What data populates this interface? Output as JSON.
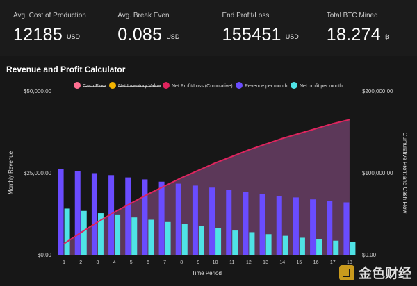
{
  "stats": [
    {
      "label": "Avg. Cost of Production",
      "value": "12185",
      "unit": "USD"
    },
    {
      "label": "Avg. Break Even",
      "value": "0.085",
      "unit": "USD"
    },
    {
      "label": "End Profit/Loss",
      "value": "155451",
      "unit": "USD"
    },
    {
      "label": "Total BTC Mined",
      "value": "18.274",
      "unit": "฿"
    }
  ],
  "chart_title": "Revenue and Profit Calculator",
  "watermark": "金色财经",
  "chart_data": {
    "type": "bar",
    "title": "Revenue and Profit Calculator",
    "xlabel": "Time Period",
    "ylabel_left": "Monthly Revenue",
    "ylabel_right": "Cumulative Profit and Cash Flow",
    "left_ticks": [
      "$0.00",
      "$25,000.00",
      "$50,000.00"
    ],
    "right_ticks": [
      "$0.00",
      "$100,000.00",
      "$200,000.00"
    ],
    "ylim_left": [
      0,
      50000
    ],
    "ylim_right": [
      0,
      200000
    ],
    "legend_position": "top",
    "categories": [
      "1",
      "2",
      "3",
      "4",
      "5",
      "6",
      "7",
      "8",
      "9",
      "10",
      "11",
      "12",
      "13",
      "14",
      "15",
      "16",
      "17",
      "18"
    ],
    "legend": [
      {
        "name": "Cash Flow",
        "color": "#ff6f91",
        "hidden": true
      },
      {
        "name": "Net Inventory Value",
        "color": "#f4b400",
        "hidden": true
      },
      {
        "name": "Net Profit/Loss (Cumulative)",
        "color": "#e0245e",
        "hidden": false
      },
      {
        "name": "Revenue per month",
        "color": "#6a4cff",
        "hidden": false
      },
      {
        "name": "Net profit per month",
        "color": "#4fe3e6",
        "hidden": false
      }
    ],
    "series": [
      {
        "name": "Revenue per month",
        "axis": "left",
        "color": "#6a4cff",
        "values": [
          26200,
          25500,
          24900,
          24300,
          23600,
          23000,
          22300,
          21700,
          21100,
          20500,
          19800,
          19200,
          18600,
          18000,
          17500,
          16900,
          16500,
          16000
        ]
      },
      {
        "name": "Net profit per month",
        "axis": "left",
        "color": "#4fe3e6",
        "values": [
          14100,
          13400,
          12700,
          12100,
          11400,
          10700,
          10000,
          9400,
          8700,
          8100,
          7400,
          6900,
          6300,
          5800,
          5200,
          4700,
          4300,
          3900
        ]
      },
      {
        "name": "Net Profit/Loss (Cumulative)",
        "axis": "right",
        "color": "#e0245e",
        "fill": "#8a4f86",
        "values": [
          13500,
          27000,
          40000,
          52000,
          63000,
          74000,
          84000,
          94000,
          103000,
          112000,
          120000,
          128000,
          135000,
          142000,
          148000,
          154000,
          160000,
          165000
        ]
      }
    ]
  }
}
